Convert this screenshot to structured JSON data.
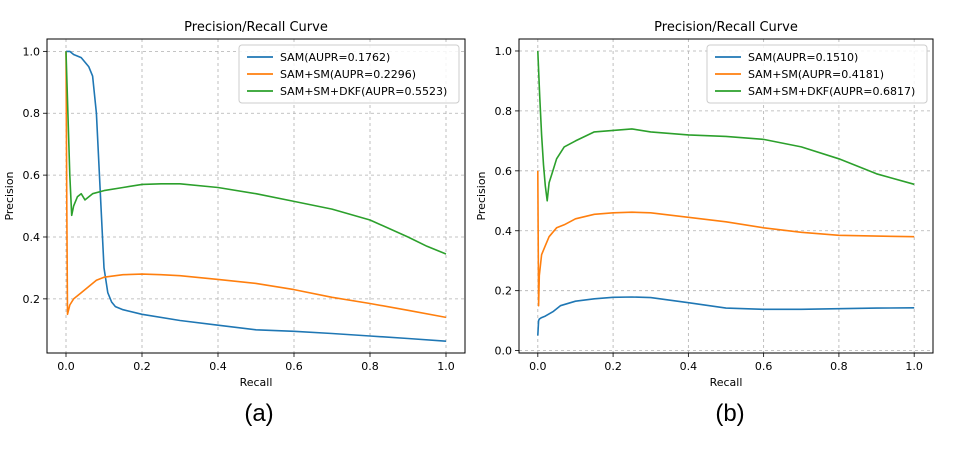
{
  "captions": [
    "(a)",
    "(b)"
  ],
  "chart_data": [
    {
      "type": "line",
      "title": "Precision/Recall Curve",
      "xlabel": "Recall",
      "ylabel": "Precision",
      "xlim": [
        -0.05,
        1.05
      ],
      "ylim": [
        0.025,
        1.04
      ],
      "xticks": [
        0.0,
        0.2,
        0.4,
        0.6,
        0.8,
        1.0
      ],
      "xtick_labels": [
        "0.0",
        "0.2",
        "0.4",
        "0.6",
        "0.8",
        "1.0"
      ],
      "yticks": [
        0.2,
        0.4,
        0.6,
        0.8,
        1.0
      ],
      "ytick_labels": [
        "0.2",
        "0.4",
        "0.6",
        "0.8",
        "1.0"
      ],
      "grid": true,
      "legend_position": "top-right",
      "series": [
        {
          "name": "SAM(AUPR=0.1762)",
          "color": "#1f77b4",
          "x": [
            0.0,
            0.01,
            0.02,
            0.04,
            0.06,
            0.07,
            0.08,
            0.09,
            0.1,
            0.11,
            0.12,
            0.13,
            0.15,
            0.2,
            0.3,
            0.4,
            0.5,
            0.6,
            0.7,
            0.8,
            0.9,
            1.0
          ],
          "y": [
            1.0,
            1.0,
            0.99,
            0.98,
            0.95,
            0.92,
            0.8,
            0.55,
            0.3,
            0.22,
            0.19,
            0.175,
            0.165,
            0.15,
            0.13,
            0.115,
            0.1,
            0.095,
            0.088,
            0.08,
            0.072,
            0.063
          ]
        },
        {
          "name": "SAM+SM(AUPR=0.2296)",
          "color": "#ff7f0e",
          "x": [
            0.0,
            0.002,
            0.004,
            0.01,
            0.02,
            0.04,
            0.06,
            0.08,
            0.1,
            0.15,
            0.2,
            0.25,
            0.3,
            0.4,
            0.5,
            0.6,
            0.7,
            0.8,
            0.9,
            1.0
          ],
          "y": [
            1.0,
            0.5,
            0.15,
            0.18,
            0.2,
            0.22,
            0.24,
            0.26,
            0.27,
            0.278,
            0.28,
            0.278,
            0.275,
            0.263,
            0.25,
            0.23,
            0.205,
            0.185,
            0.163,
            0.14
          ]
        },
        {
          "name": "SAM+SM+DKF(AUPR=0.5523)",
          "color": "#2ca02c",
          "x": [
            0.0,
            0.005,
            0.01,
            0.015,
            0.02,
            0.03,
            0.04,
            0.05,
            0.07,
            0.1,
            0.15,
            0.2,
            0.25,
            0.3,
            0.4,
            0.5,
            0.6,
            0.7,
            0.8,
            0.9,
            0.95,
            1.0
          ],
          "y": [
            1.0,
            0.8,
            0.6,
            0.47,
            0.5,
            0.53,
            0.54,
            0.52,
            0.54,
            0.55,
            0.56,
            0.57,
            0.572,
            0.572,
            0.56,
            0.54,
            0.515,
            0.49,
            0.455,
            0.4,
            0.37,
            0.345
          ]
        }
      ]
    },
    {
      "type": "line",
      "title": "Precision/Recall Curve",
      "xlabel": "Recall",
      "ylabel": "Precision",
      "xlim": [
        -0.05,
        1.05
      ],
      "ylim": [
        -0.008,
        1.04
      ],
      "xticks": [
        0.0,
        0.2,
        0.4,
        0.6,
        0.8,
        1.0
      ],
      "xtick_labels": [
        "0.0",
        "0.2",
        "0.4",
        "0.6",
        "0.8",
        "1.0"
      ],
      "yticks": [
        0.0,
        0.2,
        0.4,
        0.6,
        0.8,
        1.0
      ],
      "ytick_labels": [
        "0.0",
        "0.2",
        "0.4",
        "0.6",
        "0.8",
        "1.0"
      ],
      "grid": true,
      "legend_position": "top-right",
      "series": [
        {
          "name": "SAM(AUPR=0.1510)",
          "color": "#1f77b4",
          "x": [
            0.0,
            0.002,
            0.004,
            0.01,
            0.02,
            0.04,
            0.06,
            0.1,
            0.15,
            0.2,
            0.25,
            0.3,
            0.4,
            0.5,
            0.6,
            0.7,
            0.8,
            0.9,
            1.0
          ],
          "y": [
            0.05,
            0.1,
            0.105,
            0.11,
            0.115,
            0.13,
            0.15,
            0.165,
            0.173,
            0.178,
            0.179,
            0.177,
            0.16,
            0.142,
            0.138,
            0.138,
            0.14,
            0.142,
            0.143
          ]
        },
        {
          "name": "SAM+SM(AUPR=0.4181)",
          "color": "#ff7f0e",
          "x": [
            0.0,
            0.002,
            0.004,
            0.01,
            0.02,
            0.03,
            0.05,
            0.07,
            0.1,
            0.15,
            0.2,
            0.25,
            0.3,
            0.4,
            0.5,
            0.6,
            0.7,
            0.8,
            0.9,
            1.0
          ],
          "y": [
            0.6,
            0.15,
            0.25,
            0.32,
            0.35,
            0.38,
            0.41,
            0.42,
            0.44,
            0.455,
            0.46,
            0.462,
            0.46,
            0.445,
            0.43,
            0.41,
            0.395,
            0.385,
            0.382,
            0.38
          ]
        },
        {
          "name": "SAM+SM+DKF(AUPR=0.6817)",
          "color": "#2ca02c",
          "x": [
            0.0,
            0.005,
            0.01,
            0.015,
            0.02,
            0.025,
            0.03,
            0.04,
            0.05,
            0.07,
            0.1,
            0.15,
            0.2,
            0.25,
            0.3,
            0.4,
            0.5,
            0.6,
            0.7,
            0.8,
            0.9,
            1.0
          ],
          "y": [
            1.0,
            0.85,
            0.72,
            0.62,
            0.55,
            0.5,
            0.56,
            0.6,
            0.64,
            0.68,
            0.7,
            0.73,
            0.735,
            0.74,
            0.73,
            0.72,
            0.715,
            0.705,
            0.68,
            0.64,
            0.59,
            0.555
          ]
        }
      ]
    }
  ]
}
